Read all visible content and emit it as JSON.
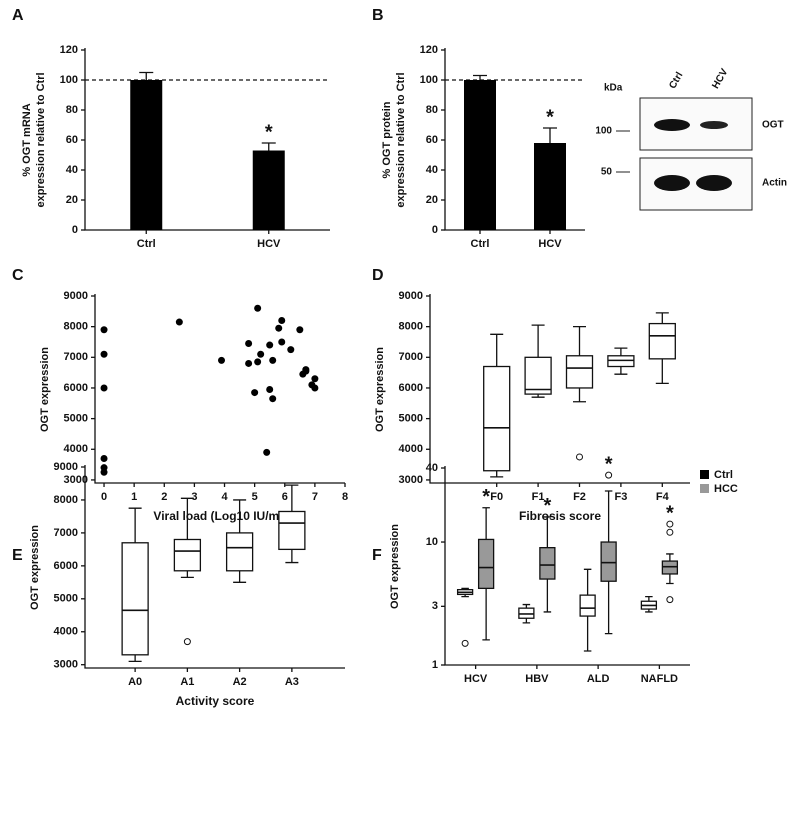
{
  "chart_data": [
    {
      "type": "bar",
      "panel": "A",
      "ylabel": [
        "% OGT mRNA",
        "expression relative to Ctrl"
      ],
      "categories": [
        "Ctrl",
        "HCV"
      ],
      "values": [
        100,
        53
      ],
      "errors": [
        5,
        5
      ],
      "significance": [
        null,
        "*"
      ],
      "color": "#000000",
      "refline": 100,
      "ylim": [
        0,
        120
      ],
      "yticks": [
        0,
        20,
        40,
        60,
        80,
        100,
        120
      ]
    },
    {
      "type": "bar",
      "panel": "B",
      "ylabel": [
        "% OGT protein",
        "expression relative to Ctrl"
      ],
      "categories": [
        "Ctrl",
        "HCV"
      ],
      "values": [
        100,
        58
      ],
      "errors": [
        3,
        10
      ],
      "significance": [
        null,
        "*"
      ],
      "color": "#000000",
      "refline": 100,
      "ylim": [
        0,
        120
      ],
      "yticks": [
        0,
        20,
        40,
        60,
        80,
        100,
        120
      ],
      "blot": {
        "unit": "kDa",
        "lanes": [
          "Ctrl",
          "HCV"
        ],
        "markers": [
          100,
          50
        ],
        "bands": [
          "OGT",
          "Actin"
        ]
      }
    },
    {
      "type": "scatter",
      "panel": "C",
      "ylabel": "OGT expression",
      "xlabel": "Viral load (Log10 IU/ml)",
      "color": "#000000",
      "x": [
        0,
        0,
        0,
        0,
        0,
        0,
        2.5,
        3.9,
        4.8,
        4.8,
        5.0,
        5.1,
        5.1,
        5.2,
        5.4,
        5.5,
        5.5,
        5.6,
        5.6,
        5.8,
        5.9,
        5.9,
        6.2,
        6.5,
        6.6,
        6.7,
        6.7,
        6.9,
        7.0,
        7.0
      ],
      "values": [
        7900,
        7100,
        6000,
        3700,
        3400,
        3250,
        8150,
        6900,
        7450,
        6800,
        5850,
        8600,
        6850,
        7100,
        3900,
        7400,
        5950,
        5650,
        6900,
        7950,
        8200,
        7500,
        7250,
        7900,
        6450,
        6550,
        6600,
        6100,
        6300,
        6000
      ],
      "xlim": [
        -0.3,
        8
      ],
      "xticks": [
        0,
        1,
        2,
        3,
        4,
        5,
        6,
        7,
        8
      ],
      "ylim": [
        2900,
        9000
      ],
      "yticks": [
        3000,
        4000,
        5000,
        6000,
        7000,
        8000,
        9000
      ]
    },
    {
      "type": "box",
      "panel": "D",
      "ylabel": "OGT expression",
      "xlabel": "Fibrosis score",
      "categories": [
        "F0",
        "F1",
        "F2",
        "F3",
        "F4"
      ],
      "boxes": [
        {
          "min": 3100,
          "q1": 3300,
          "median": 4700,
          "q3": 6700,
          "max": 7750
        },
        {
          "min": 5700,
          "q1": 5800,
          "median": 5950,
          "q3": 7000,
          "max": 8050
        },
        {
          "min": 5550,
          "q1": 6000,
          "median": 6650,
          "q3": 7050,
          "max": 8000,
          "outliers": [
            3750
          ]
        },
        {
          "min": 6450,
          "q1": 6700,
          "median": 6900,
          "q3": 7050,
          "max": 7300
        },
        {
          "min": 6150,
          "q1": 6950,
          "median": 7700,
          "q3": 8100,
          "max": 8450
        }
      ],
      "ylim": [
        2900,
        9000
      ],
      "yticks": [
        3000,
        4000,
        5000,
        6000,
        7000,
        8000,
        9000
      ]
    },
    {
      "type": "box",
      "panel": "E",
      "ylabel": "OGT expression",
      "xlabel": "Activity score",
      "categories": [
        "A0",
        "A1",
        "A2",
        "A3"
      ],
      "boxes": [
        {
          "min": 3100,
          "q1": 3300,
          "median": 4650,
          "q3": 6700,
          "max": 7750
        },
        {
          "min": 5650,
          "q1": 5850,
          "median": 6450,
          "q3": 6800,
          "max": 8050,
          "outliers": [
            3700
          ]
        },
        {
          "min": 5500,
          "q1": 5850,
          "median": 6550,
          "q3": 7000,
          "max": 8000
        },
        {
          "min": 6100,
          "q1": 6500,
          "median": 7300,
          "q3": 7650,
          "max": 8450
        }
      ],
      "ylim": [
        2900,
        9000
      ],
      "yticks": [
        3000,
        4000,
        5000,
        6000,
        7000,
        8000,
        9000
      ]
    },
    {
      "type": "box",
      "panel": "F",
      "ylabel": "OGT expression",
      "log_y": true,
      "categories": [
        "HCV",
        "HBV",
        "ALD",
        "NAFLD"
      ],
      "series": [
        {
          "name": "Ctrl",
          "color": "#000000",
          "fill": "#ffffff",
          "boxes": [
            {
              "min": 3.6,
              "q1": 3.75,
              "median": 3.9,
              "q3": 4.1,
              "max": 4.2,
              "outliers": [
                1.5
              ]
            },
            {
              "min": 2.2,
              "q1": 2.4,
              "median": 2.6,
              "q3": 2.9,
              "max": 3.1
            },
            {
              "min": 1.3,
              "q1": 2.5,
              "median": 2.9,
              "q3": 3.7,
              "max": 6
            },
            {
              "min": 2.7,
              "q1": 2.85,
              "median": 3.05,
              "q3": 3.3,
              "max": 3.6
            }
          ]
        },
        {
          "name": "HCC",
          "color": "#999999",
          "fill": "#999999",
          "significance": [
            "*",
            "*",
            "*",
            "*"
          ],
          "boxes": [
            {
              "min": 1.6,
              "q1": 4.2,
              "median": 6.2,
              "q3": 10.5,
              "max": 19
            },
            {
              "min": 2.7,
              "q1": 5,
              "median": 6.5,
              "q3": 9,
              "max": 16
            },
            {
              "min": 1.8,
              "q1": 4.8,
              "median": 6.8,
              "q3": 10,
              "max": 26,
              "outliers": [
                35
              ]
            },
            {
              "min": 4.6,
              "q1": 5.5,
              "median": 6.3,
              "q3": 7,
              "max": 8,
              "outliers": [
                3.4,
                12,
                14
              ]
            }
          ]
        }
      ],
      "ylim": [
        1,
        40
      ],
      "yticks": [
        1,
        3,
        10,
        40
      ]
    }
  ]
}
